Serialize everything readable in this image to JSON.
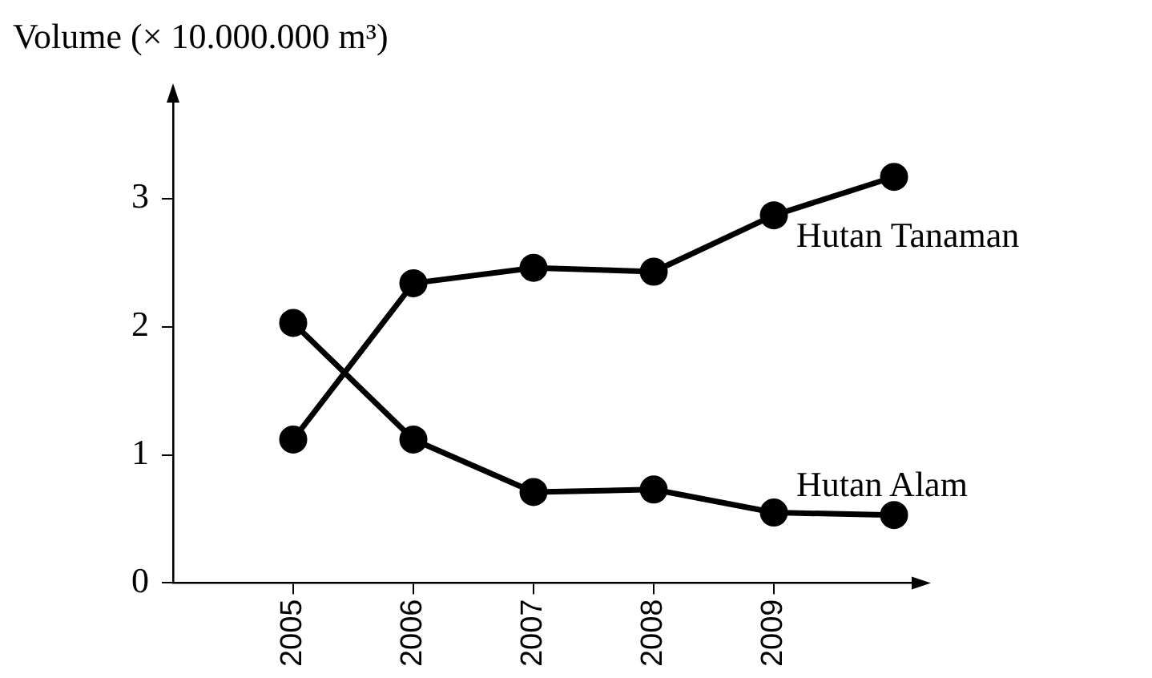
{
  "chart_data": {
    "type": "line",
    "ylabel": "Volume (× 10.000.000 m³)",
    "x": [
      2005,
      2006,
      2007,
      2008,
      2009,
      2010
    ],
    "xlim": [
      2004,
      2010.2
    ],
    "xticks": [
      2005,
      2006,
      2007,
      2008,
      2009
    ],
    "ylim": [
      0,
      3.8
    ],
    "yticks": [
      0,
      1,
      2,
      3
    ],
    "series": [
      {
        "name": "Hutan Tanaman",
        "color": "#000000",
        "values": [
          1.12,
          2.34,
          2.46,
          2.43,
          2.87,
          3.17
        ]
      },
      {
        "name": "Hutan Alam",
        "color": "#000000",
        "values": [
          2.03,
          1.12,
          0.71,
          0.73,
          0.55,
          0.53
        ]
      }
    ],
    "marker": "circle",
    "line_style": "solid",
    "grid": false,
    "legend": false
  }
}
